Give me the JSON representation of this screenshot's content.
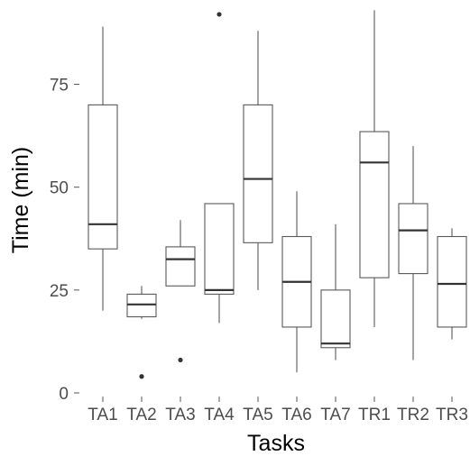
{
  "chart_data": {
    "type": "boxplot",
    "xlabel": "Tasks",
    "ylabel": "Time (min)",
    "ylim": [
      -1,
      93
    ],
    "yticks": [
      0,
      25,
      50,
      75
    ],
    "grid": false,
    "colors": {
      "box_stroke": "#595959",
      "box_fill": "#ffffff",
      "median": "#333333",
      "outlier": "#333333",
      "tick_text": "#4d4d4d",
      "title_text": "#000000"
    },
    "categories": [
      "TA1",
      "TA2",
      "TA3",
      "TA4",
      "TA5",
      "TA6",
      "TA7",
      "TR1",
      "TR2",
      "TR3"
    ],
    "boxes": [
      {
        "category": "TA1",
        "min": 20,
        "q1": 35,
        "median": 41,
        "q3": 70,
        "max": 89,
        "outliers": []
      },
      {
        "category": "TA2",
        "min": 18,
        "q1": 18.5,
        "median": 21.5,
        "q3": 24,
        "max": 26,
        "outliers": [
          4
        ]
      },
      {
        "category": "TA3",
        "min": 26,
        "q1": 26,
        "median": 32.5,
        "q3": 35.5,
        "max": 42,
        "outliers": [
          8
        ]
      },
      {
        "category": "TA4",
        "min": 17,
        "q1": 24,
        "median": 25,
        "q3": 46,
        "max": 46,
        "outliers": [
          92
        ]
      },
      {
        "category": "TA5",
        "min": 25,
        "q1": 36.5,
        "median": 52,
        "q3": 70,
        "max": 88,
        "outliers": []
      },
      {
        "category": "TA6",
        "min": 5,
        "q1": 16,
        "median": 27,
        "q3": 38,
        "max": 49,
        "outliers": []
      },
      {
        "category": "TA7",
        "min": 8,
        "q1": 11,
        "median": 12,
        "q3": 25,
        "max": 41,
        "outliers": []
      },
      {
        "category": "TR1",
        "min": 16,
        "q1": 28,
        "median": 56,
        "q3": 63.5,
        "max": 93,
        "outliers": []
      },
      {
        "category": "TR2",
        "min": 8,
        "q1": 29,
        "median": 39.5,
        "q3": 46,
        "max": 60,
        "outliers": []
      },
      {
        "category": "TR3",
        "min": 13,
        "q1": 16,
        "median": 26.5,
        "q3": 38,
        "max": 40,
        "outliers": []
      }
    ]
  }
}
